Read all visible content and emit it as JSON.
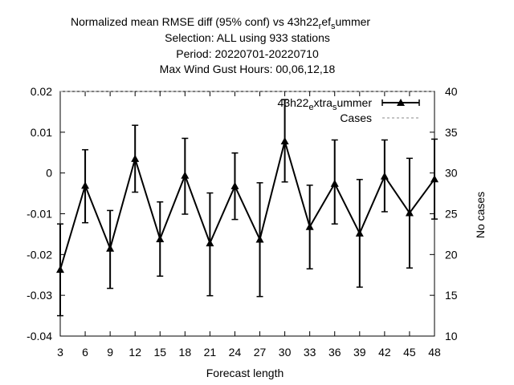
{
  "chart_data": {
    "type": "line",
    "title_lines": [
      "Normalized mean RMSE diff (95% conf) vs 43h22",
      "Selection: ALL using   933 stations",
      "Period: 20220701-20220710",
      "Max Wind Gust   Hours: 00,06,12,18"
    ],
    "title_tail": {
      "a": "r",
      "b": "ef",
      "c": "s",
      "d": "ummer"
    },
    "xlabel": "Forecast length",
    "ylabel": "",
    "y2label": "No cases",
    "x": [
      3,
      6,
      9,
      12,
      15,
      18,
      21,
      24,
      27,
      30,
      33,
      36,
      39,
      42,
      45,
      48
    ],
    "xlim": [
      3,
      48
    ],
    "ylim": [
      -0.04,
      0.02
    ],
    "y2lim": [
      10,
      40
    ],
    "y_ticks": [
      "0.02",
      "0.01",
      "0",
      "-0.01",
      "-0.02",
      "-0.03",
      "-0.04"
    ],
    "y2_ticks": [
      "40",
      "35",
      "30",
      "25",
      "20",
      "15",
      "10"
    ],
    "series": [
      {
        "name": "43h22",
        "name_tail": {
          "a": "e",
          "b": "xtra",
          "c": "s",
          "d": "ummer"
        },
        "values": [
          -0.0237,
          -0.0031,
          -0.0185,
          0.0035,
          -0.0162,
          -0.0006,
          -0.0172,
          -0.0032,
          -0.0163,
          0.0078,
          -0.0132,
          -0.0026,
          -0.0148,
          -0.0008,
          -0.0098,
          -0.0015
        ],
        "err_low": [
          -0.035,
          -0.0122,
          -0.0283,
          -0.0047,
          -0.0253,
          -0.0101,
          -0.0301,
          -0.0114,
          -0.0303,
          -0.0022,
          -0.0235,
          -0.0125,
          -0.028,
          -0.0095,
          -0.0233,
          -0.0113
        ],
        "err_high": [
          -0.0125,
          0.0057,
          -0.0092,
          0.0117,
          -0.0071,
          0.0085,
          -0.0049,
          0.0049,
          -0.0024,
          0.018,
          -0.003,
          0.0081,
          -0.0016,
          0.0081,
          0.0036,
          0.0083
        ]
      },
      {
        "name": "Cases",
        "values_y2": [
          40,
          40,
          40,
          40,
          40,
          40,
          40,
          40,
          40,
          40,
          40,
          40,
          40,
          40,
          40,
          40
        ],
        "style": "dashed"
      }
    ],
    "grid": false,
    "legend_position": "top-right"
  }
}
